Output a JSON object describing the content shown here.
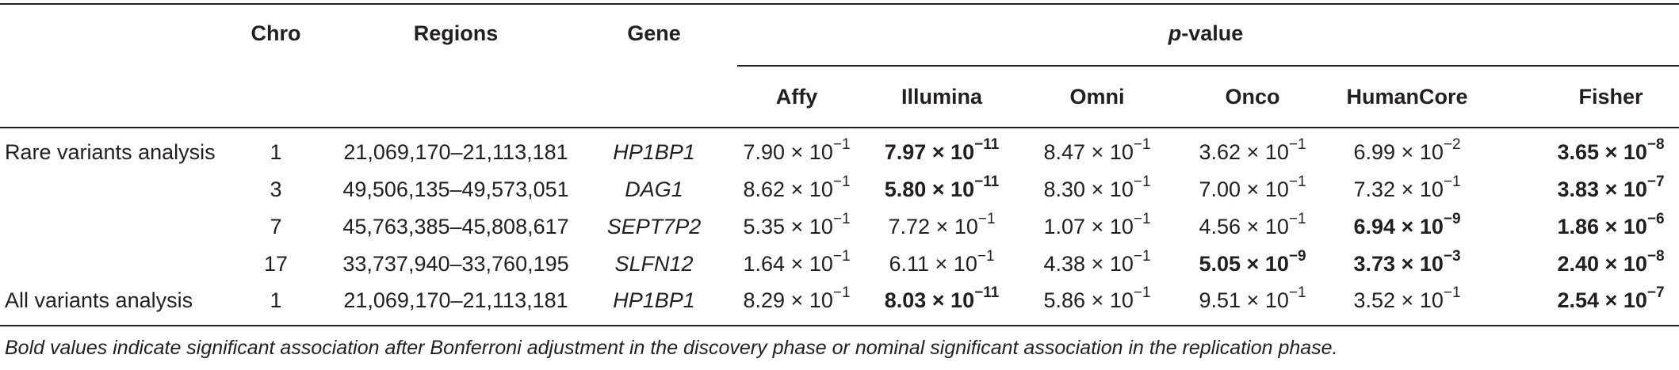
{
  "table": {
    "headers": {
      "chro": "Chro",
      "regions": "Regions",
      "gene": "Gene",
      "pvalue_p": "p",
      "pvalue_rest": "-value",
      "sub": [
        "Affy",
        "Illumina",
        "Omni",
        "Onco",
        "HumanCore",
        "Fisher"
      ]
    },
    "rows": [
      {
        "analysis": "Rare variants analysis",
        "chro": "1",
        "region": "21,069,170–21,113,181",
        "gene": "HP1BP1",
        "p": [
          {
            "m": "7.90",
            "e": "−1",
            "bold": false
          },
          {
            "m": "7.97",
            "e": "−11",
            "bold": true
          },
          {
            "m": "8.47",
            "e": "−1",
            "bold": false
          },
          {
            "m": "3.62",
            "e": "−1",
            "bold": false
          },
          {
            "m": "6.99",
            "e": "−2",
            "bold": false
          },
          {
            "m": "3.65",
            "e": "−8",
            "bold": true
          }
        ]
      },
      {
        "analysis": "",
        "chro": "3",
        "region": "49,506,135–49,573,051",
        "gene": "DAG1",
        "p": [
          {
            "m": "8.62",
            "e": "−1",
            "bold": false
          },
          {
            "m": "5.80",
            "e": "−11",
            "bold": true
          },
          {
            "m": "8.30",
            "e": "−1",
            "bold": false
          },
          {
            "m": "7.00",
            "e": "−1",
            "bold": false
          },
          {
            "m": "7.32",
            "e": "−1",
            "bold": false
          },
          {
            "m": "3.83",
            "e": "−7",
            "bold": true
          }
        ]
      },
      {
        "analysis": "",
        "chro": "7",
        "region": "45,763,385–45,808,617",
        "gene": "SEPT7P2",
        "p": [
          {
            "m": "5.35",
            "e": "−1",
            "bold": false
          },
          {
            "m": "7.72",
            "e": "−1",
            "bold": false
          },
          {
            "m": "1.07",
            "e": "−1",
            "bold": false
          },
          {
            "m": "4.56",
            "e": "−1",
            "bold": false
          },
          {
            "m": "6.94",
            "e": "−9",
            "bold": true
          },
          {
            "m": "1.86",
            "e": "−6",
            "bold": true
          }
        ]
      },
      {
        "analysis": "",
        "chro": "17",
        "region": "33,737,940–33,760,195",
        "gene": "SLFN12",
        "p": [
          {
            "m": "1.64",
            "e": "−1",
            "bold": false
          },
          {
            "m": "6.11",
            "e": "−1",
            "bold": false
          },
          {
            "m": "4.38",
            "e": "−1",
            "bold": false
          },
          {
            "m": "5.05",
            "e": "−9",
            "bold": true
          },
          {
            "m": "3.73",
            "e": "−3",
            "bold": true
          },
          {
            "m": "2.40",
            "e": "−8",
            "bold": true
          }
        ]
      },
      {
        "analysis": "All variants analysis",
        "chro": "1",
        "region": "21,069,170–21,113,181",
        "gene": "HP1BP1",
        "p": [
          {
            "m": "8.29",
            "e": "−1",
            "bold": false
          },
          {
            "m": "8.03",
            "e": "−11",
            "bold": true
          },
          {
            "m": "5.86",
            "e": "−1",
            "bold": false
          },
          {
            "m": "9.51",
            "e": "−1",
            "bold": false
          },
          {
            "m": "3.52",
            "e": "−1",
            "bold": false
          },
          {
            "m": "2.54",
            "e": "−7",
            "bold": true
          }
        ]
      }
    ],
    "times": "× 10",
    "footnote": "Bold values indicate significant association after Bonferroni adjustment in the discovery phase or nominal significant association in the replication phase."
  }
}
